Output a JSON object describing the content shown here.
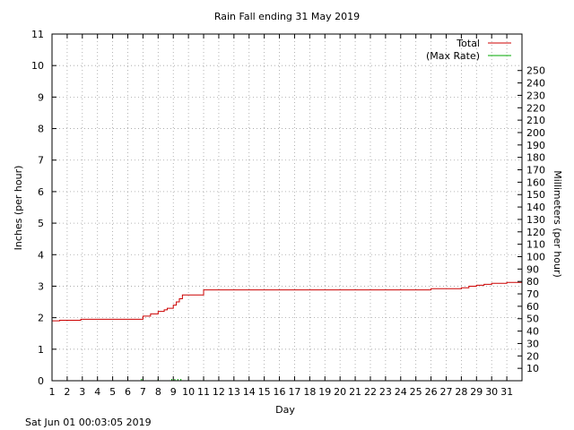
{
  "chart_data": {
    "type": "line",
    "title": "Rain Fall ending 31 May 2019",
    "xlabel": "Day",
    "ylabel": "Inches (per hour)",
    "y2label": "Millimeters (per hour)",
    "xlim": [
      1,
      32
    ],
    "ylim": [
      0,
      11
    ],
    "y2lim": [
      0,
      279.4
    ],
    "x_ticks": [
      1,
      2,
      3,
      4,
      5,
      6,
      7,
      8,
      9,
      10,
      11,
      12,
      13,
      14,
      15,
      16,
      17,
      18,
      19,
      20,
      21,
      22,
      23,
      24,
      25,
      26,
      27,
      28,
      29,
      30,
      31
    ],
    "y_ticks": [
      0,
      1,
      2,
      3,
      4,
      5,
      6,
      7,
      8,
      9,
      10,
      11
    ],
    "y2_ticks": [
      10,
      20,
      30,
      40,
      50,
      60,
      70,
      80,
      90,
      100,
      110,
      120,
      130,
      140,
      150,
      160,
      170,
      180,
      190,
      200,
      210,
      220,
      230,
      240,
      250
    ],
    "grid": true,
    "legend_position": "top-right",
    "series": [
      {
        "name": "Total",
        "color": "#cc0000",
        "step": true,
        "x": [
          1,
          1.5,
          2.9,
          7.0,
          7.5,
          8.0,
          8.4,
          8.6,
          9.0,
          9.2,
          9.4,
          9.6,
          11.0,
          26.0,
          28.0,
          28.5,
          29.0,
          29.5,
          30.0,
          31.0,
          32.0
        ],
        "y": [
          1.9,
          1.92,
          1.95,
          2.05,
          2.12,
          2.2,
          2.25,
          2.3,
          2.4,
          2.5,
          2.6,
          2.72,
          2.88,
          2.92,
          2.95,
          3.0,
          3.03,
          3.06,
          3.09,
          3.12,
          3.12
        ]
      },
      {
        "name": "(Max Rate)",
        "color": "#00aa00",
        "spikes": true,
        "x": [
          6.9,
          7.0,
          8.0,
          8.9,
          9.1,
          9.3,
          9.5,
          11.0
        ],
        "y": [
          0.05,
          0.07,
          0.03,
          0.03,
          0.04,
          0.05,
          0.03,
          0.08
        ]
      }
    ],
    "footer": "Sat Jun 01 00:03:05 2019"
  }
}
